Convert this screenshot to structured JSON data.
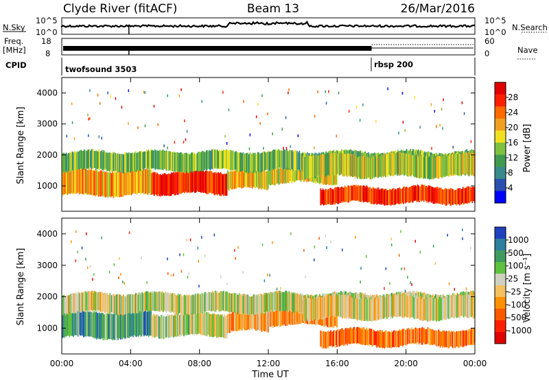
{
  "header": {
    "station": "Clyde River (fitACF)",
    "beam": "Beam 13",
    "date": "26/Mar/2016"
  },
  "strip_panels": {
    "nsky": {
      "label": "N.Sky",
      "ticks": [
        "10^5",
        "10^0"
      ]
    },
    "nsearch": {
      "label": "N.Search",
      "ticks": [
        "10^5",
        "10^0"
      ]
    },
    "freq": {
      "label_line1": "Freq.",
      "label_line2": "[MHz]",
      "ticks": [
        "18",
        "8"
      ]
    },
    "nave": {
      "label": "Nave",
      "ticks": [
        "60",
        "0"
      ]
    },
    "cpid": {
      "label": "CPID",
      "programs": [
        "twofsound 3503",
        "rbsp 200"
      ]
    }
  },
  "colors": {
    "power_scale": [
      "#0000ff",
      "#2a4fb0",
      "#3a8a8a",
      "#3f9a4f",
      "#7fc040",
      "#f0e020",
      "#f0a020",
      "#ff6a00",
      "#ff2000",
      "#e00000"
    ],
    "velocity_scale": [
      "#2040c0",
      "#2f7fa0",
      "#3f9a5f",
      "#60c040",
      "#d0d0c0",
      "#f4c060",
      "#ff9000",
      "#ff5a00",
      "#ff2000",
      "#e00000"
    ]
  },
  "chart_data": [
    {
      "type": "heatmap",
      "quantity": "power",
      "ylabel": "Slant Range [km]",
      "xlabel": "",
      "x_ticks": [
        "00:00",
        "04:00",
        "08:00",
        "12:00",
        "16:00",
        "20:00",
        "00:00"
      ],
      "x_range_hours": [
        0,
        24
      ],
      "y_ticks": [
        1000,
        2000,
        3000,
        4000
      ],
      "ylim": [
        180,
        4500
      ],
      "colorbar": {
        "label": "Power [dB]",
        "ticks": [
          4,
          8,
          12,
          16,
          20,
          24,
          28
        ],
        "range": [
          0,
          32
        ]
      },
      "bands": [
        {
          "t0": 0.0,
          "t1": 5.2,
          "r0": 700,
          "r1": 1500,
          "level": 0.65
        },
        {
          "t0": 5.2,
          "t1": 9.6,
          "r0": 750,
          "r1": 1450,
          "level": 0.9
        },
        {
          "t0": 9.6,
          "t1": 12.0,
          "r0": 900,
          "r1": 1500,
          "level": 0.6
        },
        {
          "t0": 12.0,
          "t1": 16.0,
          "r0": 1100,
          "r1": 1600,
          "level": 0.55
        },
        {
          "t0": 15.0,
          "t1": 24.0,
          "r0": 450,
          "r1": 950,
          "level": 0.85
        },
        {
          "t0": 0.0,
          "t1": 24.0,
          "r0": 1500,
          "r1": 2100,
          "level": 0.4
        },
        {
          "t0": 14.0,
          "t1": 24.0,
          "r0": 1300,
          "r1": 2000,
          "level": 0.5
        }
      ]
    },
    {
      "type": "heatmap",
      "quantity": "velocity",
      "ylabel": "Slant Range [km]",
      "xlabel": "Time UT",
      "x_ticks": [
        "00:00",
        "04:00",
        "08:00",
        "12:00",
        "16:00",
        "20:00",
        "00:00"
      ],
      "x_range_hours": [
        0,
        24
      ],
      "y_ticks": [
        1000,
        2000,
        3000,
        4000
      ],
      "ylim": [
        180,
        4500
      ],
      "colorbar": {
        "label": "Velocity [m s⁻¹]",
        "ticks": [
          "1000",
          "500",
          "100",
          "25",
          "-25",
          "-100",
          "-500",
          "-1000"
        ],
        "range": [
          -1200,
          1200
        ]
      },
      "bands": [
        {
          "t0": 0.0,
          "t1": 5.2,
          "r0": 700,
          "r1": 1500,
          "level": 0.25
        },
        {
          "t0": 5.2,
          "t1": 9.6,
          "r0": 750,
          "r1": 1450,
          "level": 0.45
        },
        {
          "t0": 9.6,
          "t1": 12.0,
          "r0": 900,
          "r1": 1500,
          "level": 0.6
        },
        {
          "t0": 12.0,
          "t1": 16.0,
          "r0": 1100,
          "r1": 1600,
          "level": 0.65
        },
        {
          "t0": 15.0,
          "t1": 24.0,
          "r0": 450,
          "r1": 950,
          "level": 0.7
        },
        {
          "t0": 0.0,
          "t1": 24.0,
          "r0": 1500,
          "r1": 2100,
          "level": 0.45
        },
        {
          "t0": 14.0,
          "t1": 24.0,
          "r0": 1300,
          "r1": 2000,
          "level": 0.5
        }
      ]
    }
  ]
}
